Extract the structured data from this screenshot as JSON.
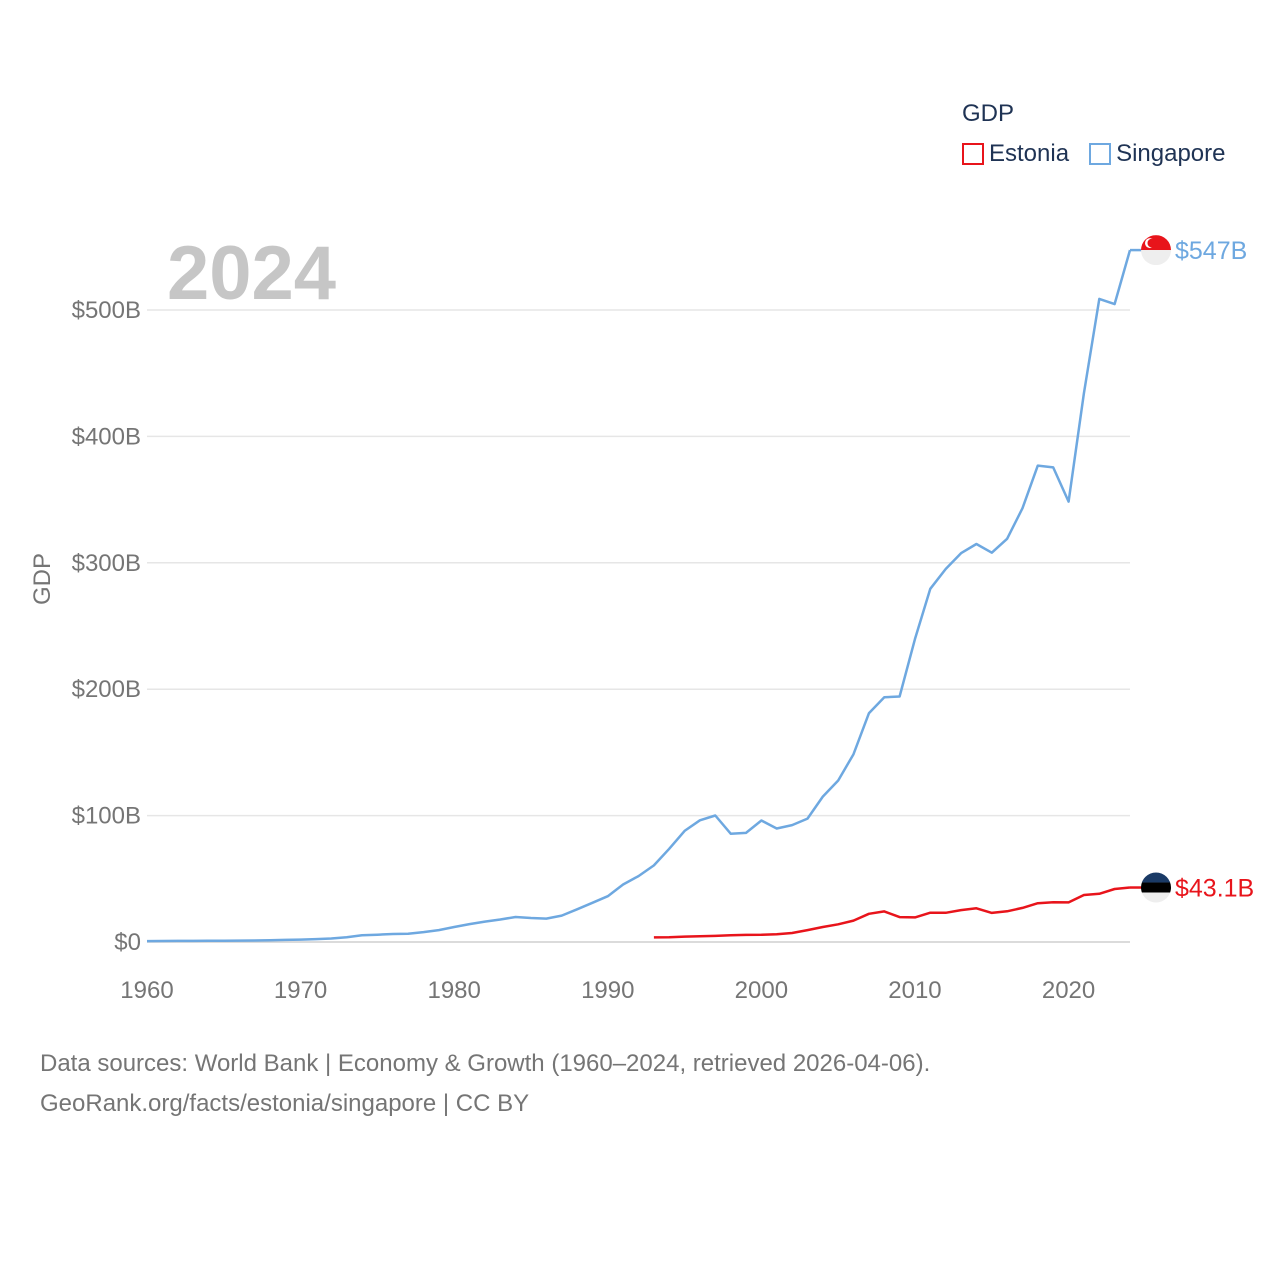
{
  "legend": {
    "title": "GDP",
    "items": [
      {
        "label": "Estonia",
        "color": "#e8141b"
      },
      {
        "label": "Singapore",
        "color": "#6ea8e0"
      }
    ]
  },
  "footer": {
    "line1": "Data sources: World Bank | Economy & Growth (1960–2024, retrieved 2026-04-06).",
    "line2": "GeoRank.org/facts/estonia/singapore | CC BY"
  },
  "chart_data": {
    "type": "line",
    "title": "GDP",
    "year_label": "2024",
    "xlabel": "",
    "ylabel": "GDP",
    "xlim": [
      1960,
      2024
    ],
    "ylim": [
      0,
      500
    ],
    "y_unit": "billion USD",
    "x_ticks": [
      1960,
      1970,
      1980,
      1990,
      2000,
      2010,
      2020
    ],
    "x_tick_labels": [
      "1960",
      "1970",
      "1980",
      "1990",
      "2000",
      "2010",
      "2020"
    ],
    "y_ticks": [
      0,
      100,
      200,
      300,
      400,
      500
    ],
    "y_tick_labels": [
      "$0",
      "$100B",
      "$200B",
      "$300B",
      "$400B",
      "$500B"
    ],
    "grid": true,
    "legend_position": "top-right",
    "series": [
      {
        "name": "Singapore",
        "color": "#6ea8e0",
        "end_label": "$547B",
        "x": [
          1960,
          1961,
          1962,
          1963,
          1964,
          1965,
          1966,
          1967,
          1968,
          1969,
          1970,
          1971,
          1972,
          1973,
          1974,
          1975,
          1976,
          1977,
          1978,
          1979,
          1980,
          1981,
          1982,
          1983,
          1984,
          1985,
          1986,
          1987,
          1988,
          1989,
          1990,
          1991,
          1992,
          1993,
          1994,
          1995,
          1996,
          1997,
          1998,
          1999,
          2000,
          2001,
          2002,
          2003,
          2004,
          2005,
          2006,
          2007,
          2008,
          2009,
          2010,
          2011,
          2012,
          2013,
          2014,
          2015,
          2016,
          2017,
          2018,
          2019,
          2020,
          2021,
          2022,
          2023,
          2024
        ],
        "values": [
          0.7,
          0.8,
          0.9,
          0.9,
          1.0,
          1.0,
          1.1,
          1.2,
          1.4,
          1.7,
          1.9,
          2.3,
          2.8,
          3.8,
          5.3,
          5.8,
          6.3,
          6.6,
          7.8,
          9.4,
          11.9,
          14.2,
          16.1,
          17.8,
          19.8,
          19.0,
          18.5,
          20.9,
          25.9,
          31.0,
          36.2,
          45.5,
          52.1,
          60.6,
          73.7,
          87.9,
          96.3,
          100.1,
          85.7,
          86.3,
          96.1,
          89.8,
          92.5,
          97.6,
          115.0,
          127.8,
          148.6,
          180.9,
          193.6,
          194.2,
          239.8,
          279.4,
          295.1,
          307.6,
          314.9,
          308.0,
          319.0,
          343.2,
          376.9,
          375.5,
          348.4,
          434.1,
          508.8,
          504.7,
          547.4
        ]
      },
      {
        "name": "Estonia",
        "color": "#e8141b",
        "end_label": "$43.1B",
        "x": [
          1993,
          1994,
          1995,
          1996,
          1997,
          1998,
          1999,
          2000,
          2001,
          2002,
          2003,
          2004,
          2005,
          2006,
          2007,
          2008,
          2009,
          2010,
          2011,
          2012,
          2013,
          2014,
          2015,
          2016,
          2017,
          2018,
          2019,
          2020,
          2021,
          2022,
          2023,
          2024
        ],
        "values": [
          3.6,
          3.8,
          4.3,
          4.5,
          4.8,
          5.4,
          5.6,
          5.7,
          6.2,
          7.1,
          9.4,
          11.9,
          14.0,
          16.9,
          22.3,
          24.2,
          19.7,
          19.5,
          23.2,
          23.1,
          25.2,
          26.7,
          23.0,
          24.3,
          27.0,
          30.7,
          31.4,
          31.3,
          37.2,
          38.1,
          41.9,
          43.1
        ]
      }
    ]
  }
}
